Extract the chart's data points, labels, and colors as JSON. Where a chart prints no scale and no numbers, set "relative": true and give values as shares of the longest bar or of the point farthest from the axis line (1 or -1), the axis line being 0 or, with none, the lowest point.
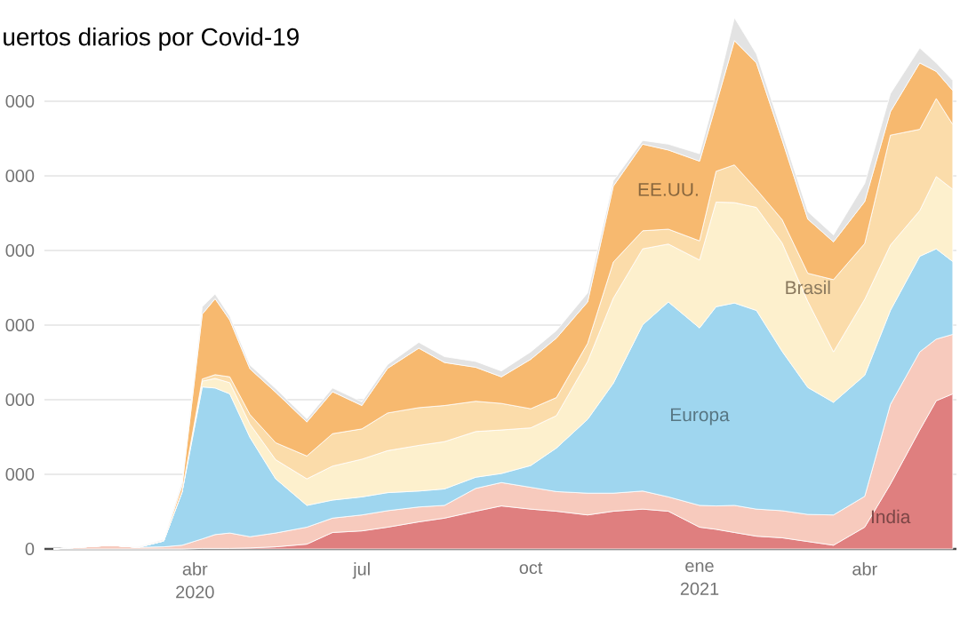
{
  "chart_data": {
    "type": "area",
    "title": "uertos diarios por Covid-19",
    "stacked": true,
    "grid": "y",
    "relative": true,
    "annotations": [
      "0",
      "000",
      "000",
      "000",
      "000",
      "000",
      "000"
    ],
    "x": [
      "2020-01-15",
      "2020-02-15",
      "2020-03-01",
      "2020-03-15",
      "2020-03-25",
      "2020-04-05",
      "2020-04-12",
      "2020-04-20",
      "2020-05-01",
      "2020-05-15",
      "2020-06-01",
      "2020-06-15",
      "2020-07-01",
      "2020-07-15",
      "2020-08-01",
      "2020-08-15",
      "2020-09-01",
      "2020-09-15",
      "2020-10-01",
      "2020-10-15",
      "2020-11-01",
      "2020-11-15",
      "2020-12-01",
      "2020-12-15",
      "2021-01-01",
      "2021-01-10",
      "2021-01-20",
      "2021-02-01",
      "2021-02-15",
      "2021-03-01",
      "2021-03-15",
      "2021-04-01",
      "2021-04-15",
      "2021-05-01",
      "2021-05-10",
      "2021-05-19"
    ],
    "xlim": [
      "2020-01-10",
      "2021-05-21"
    ],
    "xticks": [
      {
        "value": "2020-04-01",
        "label": "abr 2020"
      },
      {
        "value": "2020-07-01",
        "label": "jul"
      },
      {
        "value": "2020-10-01",
        "label": "oct"
      },
      {
        "value": "2021-01-01",
        "label": "ene 2021"
      },
      {
        "value": "2021-04-01",
        "label": "abr"
      }
    ],
    "series": [
      {
        "name": "India",
        "color": "#df7f7f",
        "values": [
          0,
          0,
          0,
          0,
          0,
          0.001,
          0.001,
          0.001,
          0.002,
          0.004,
          0.009,
          0.031,
          0.034,
          0.041,
          0.051,
          0.058,
          0.071,
          0.081,
          0.075,
          0.071,
          0.064,
          0.071,
          0.075,
          0.071,
          0.041,
          0.037,
          0.031,
          0.024,
          0.021,
          0.014,
          0.007,
          0.041,
          0.122,
          0.224,
          0.279,
          0.292
        ]
      },
      {
        "color": "#f7cabd",
        "values": [
          0,
          0.007,
          0.003,
          0.004,
          0.007,
          0.018,
          0.026,
          0.029,
          0.021,
          0.026,
          0.032,
          0.027,
          0.03,
          0.031,
          0.028,
          0.024,
          0.043,
          0.044,
          0.041,
          0.037,
          0.041,
          0.034,
          0.034,
          0.027,
          0.041,
          0.044,
          0.051,
          0.051,
          0.051,
          0.051,
          0.057,
          0.058,
          0.15,
          0.147,
          0.116,
          0.112
        ]
      },
      {
        "name": "Europa",
        "color": "#9fd6ef",
        "values": [
          0,
          0,
          0,
          0.011,
          0.1,
          0.286,
          0.276,
          0.262,
          0.187,
          0.102,
          0.041,
          0.034,
          0.034,
          0.034,
          0.03,
          0.031,
          0.021,
          0.017,
          0.041,
          0.082,
          0.139,
          0.207,
          0.313,
          0.367,
          0.334,
          0.375,
          0.381,
          0.374,
          0.3,
          0.239,
          0.212,
          0.228,
          0.177,
          0.18,
          0.17,
          0.137
        ]
      },
      {
        "color": "#fdf0cd",
        "values": [
          0,
          0,
          0,
          0,
          0.001,
          0.011,
          0.018,
          0.021,
          0.025,
          0.036,
          0.05,
          0.064,
          0.071,
          0.079,
          0.086,
          0.089,
          0.086,
          0.082,
          0.071,
          0.061,
          0.109,
          0.16,
          0.143,
          0.109,
          0.128,
          0.197,
          0.189,
          0.194,
          0.204,
          0.162,
          0.095,
          0.143,
          0.123,
          0.086,
          0.136,
          0.136
        ]
      },
      {
        "name": "Brasil",
        "color": "#fbdcaa",
        "values": [
          0,
          0,
          0,
          0,
          0,
          0.004,
          0.007,
          0.011,
          0.018,
          0.032,
          0.043,
          0.061,
          0.057,
          0.071,
          0.071,
          0.068,
          0.057,
          0.05,
          0.036,
          0.034,
          0.034,
          0.068,
          0.034,
          0.028,
          0.036,
          0.058,
          0.071,
          0.034,
          0.044,
          0.053,
          0.136,
          0.105,
          0.207,
          0.153,
          0.147,
          0.122
        ]
      },
      {
        "name": "EE.UU.",
        "color": "#f7b96f",
        "values": [
          0,
          0,
          0,
          0.001,
          0.011,
          0.122,
          0.143,
          0.107,
          0.086,
          0.095,
          0.064,
          0.079,
          0.044,
          0.084,
          0.112,
          0.081,
          0.064,
          0.05,
          0.093,
          0.112,
          0.078,
          0.143,
          0.163,
          0.149,
          0.15,
          0.126,
          0.234,
          0.238,
          0.15,
          0.102,
          0.071,
          0.079,
          0.044,
          0.125,
          0.051,
          0.064
        ]
      },
      {
        "color": "#e3e3e3",
        "values": [
          0,
          0,
          0.001,
          0.002,
          0.007,
          0.014,
          0.009,
          0.007,
          0.007,
          0.007,
          0.006,
          0.007,
          0.007,
          0.007,
          0.011,
          0.011,
          0.011,
          0.011,
          0.014,
          0.014,
          0.017,
          0.01,
          0.007,
          0.011,
          0.014,
          0.021,
          0.043,
          0.017,
          0.014,
          0.014,
          0.013,
          0.034,
          0.034,
          0.028,
          0.016,
          0.019
        ]
      }
    ]
  }
}
